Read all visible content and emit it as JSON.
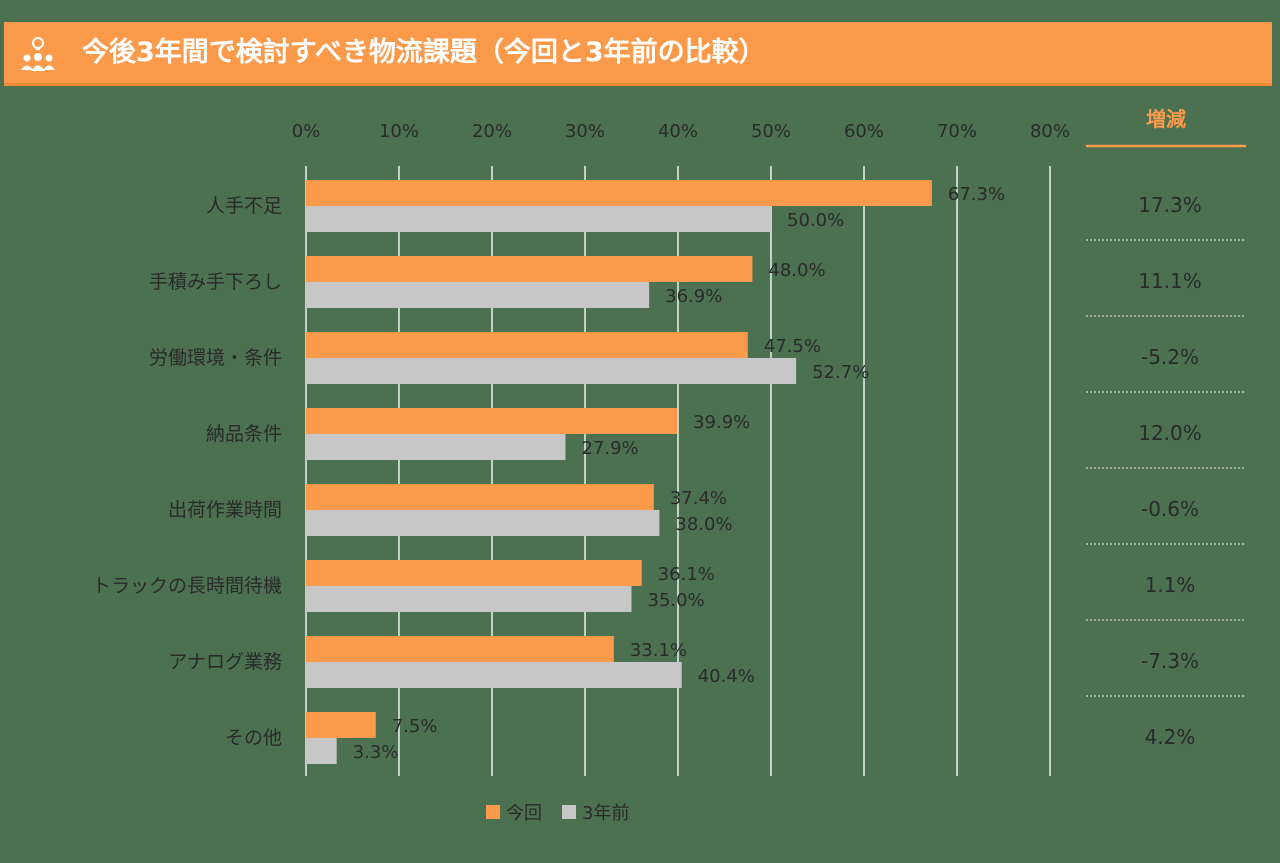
{
  "header": {
    "title": "今後3年間で検討すべき物流課題（今回と3年前の比較）",
    "icon": "team-idea-icon"
  },
  "colors": {
    "current": "#fb9a4a",
    "previous": "#c7c7c7",
    "header_bg": "#fb9a4a",
    "background": "#4b7150",
    "text": "#2a2a2a",
    "diff_header": "#fb9a4a"
  },
  "chart_data": {
    "type": "bar",
    "orientation": "horizontal",
    "title": "今後3年間で検討すべき物流課題（今回と3年前の比較）",
    "categories": [
      "人手不足",
      "手積み手下ろし",
      "労働環境・条件",
      "納品条件",
      "出荷作業時間",
      "トラックの長時間待機",
      "アナログ業務",
      "その他"
    ],
    "series": [
      {
        "name": "今回",
        "values": [
          67.3,
          48.0,
          47.5,
          39.9,
          37.4,
          36.1,
          33.1,
          7.5
        ]
      },
      {
        "name": "3年前",
        "values": [
          50.0,
          36.9,
          52.7,
          27.9,
          38.0,
          35.0,
          40.4,
          3.3
        ]
      }
    ],
    "data_labels": {
      "current": [
        "67.3%",
        "48.0%",
        "47.5%",
        "39.9%",
        "37.4%",
        "36.1%",
        "33.1%",
        "7.5%"
      ],
      "previous": [
        "50.0%",
        "36.9%",
        "52.7%",
        "27.9%",
        "38.0%",
        "35.0%",
        "40.4%",
        "3.3%"
      ]
    },
    "xlim": [
      0,
      80
    ],
    "xticks": [
      "0%",
      "10%",
      "20%",
      "30%",
      "40%",
      "50%",
      "60%",
      "70%",
      "80%"
    ],
    "tick_step": 10,
    "grid": true,
    "legend": [
      "今回",
      "3年前"
    ],
    "legend_position": "bottom",
    "diff_header": "増減",
    "diff": [
      "17.3%",
      "11.1%",
      "-5.2%",
      "12.0%",
      "-0.6%",
      "1.1%",
      "-7.3%",
      "4.2%"
    ]
  }
}
